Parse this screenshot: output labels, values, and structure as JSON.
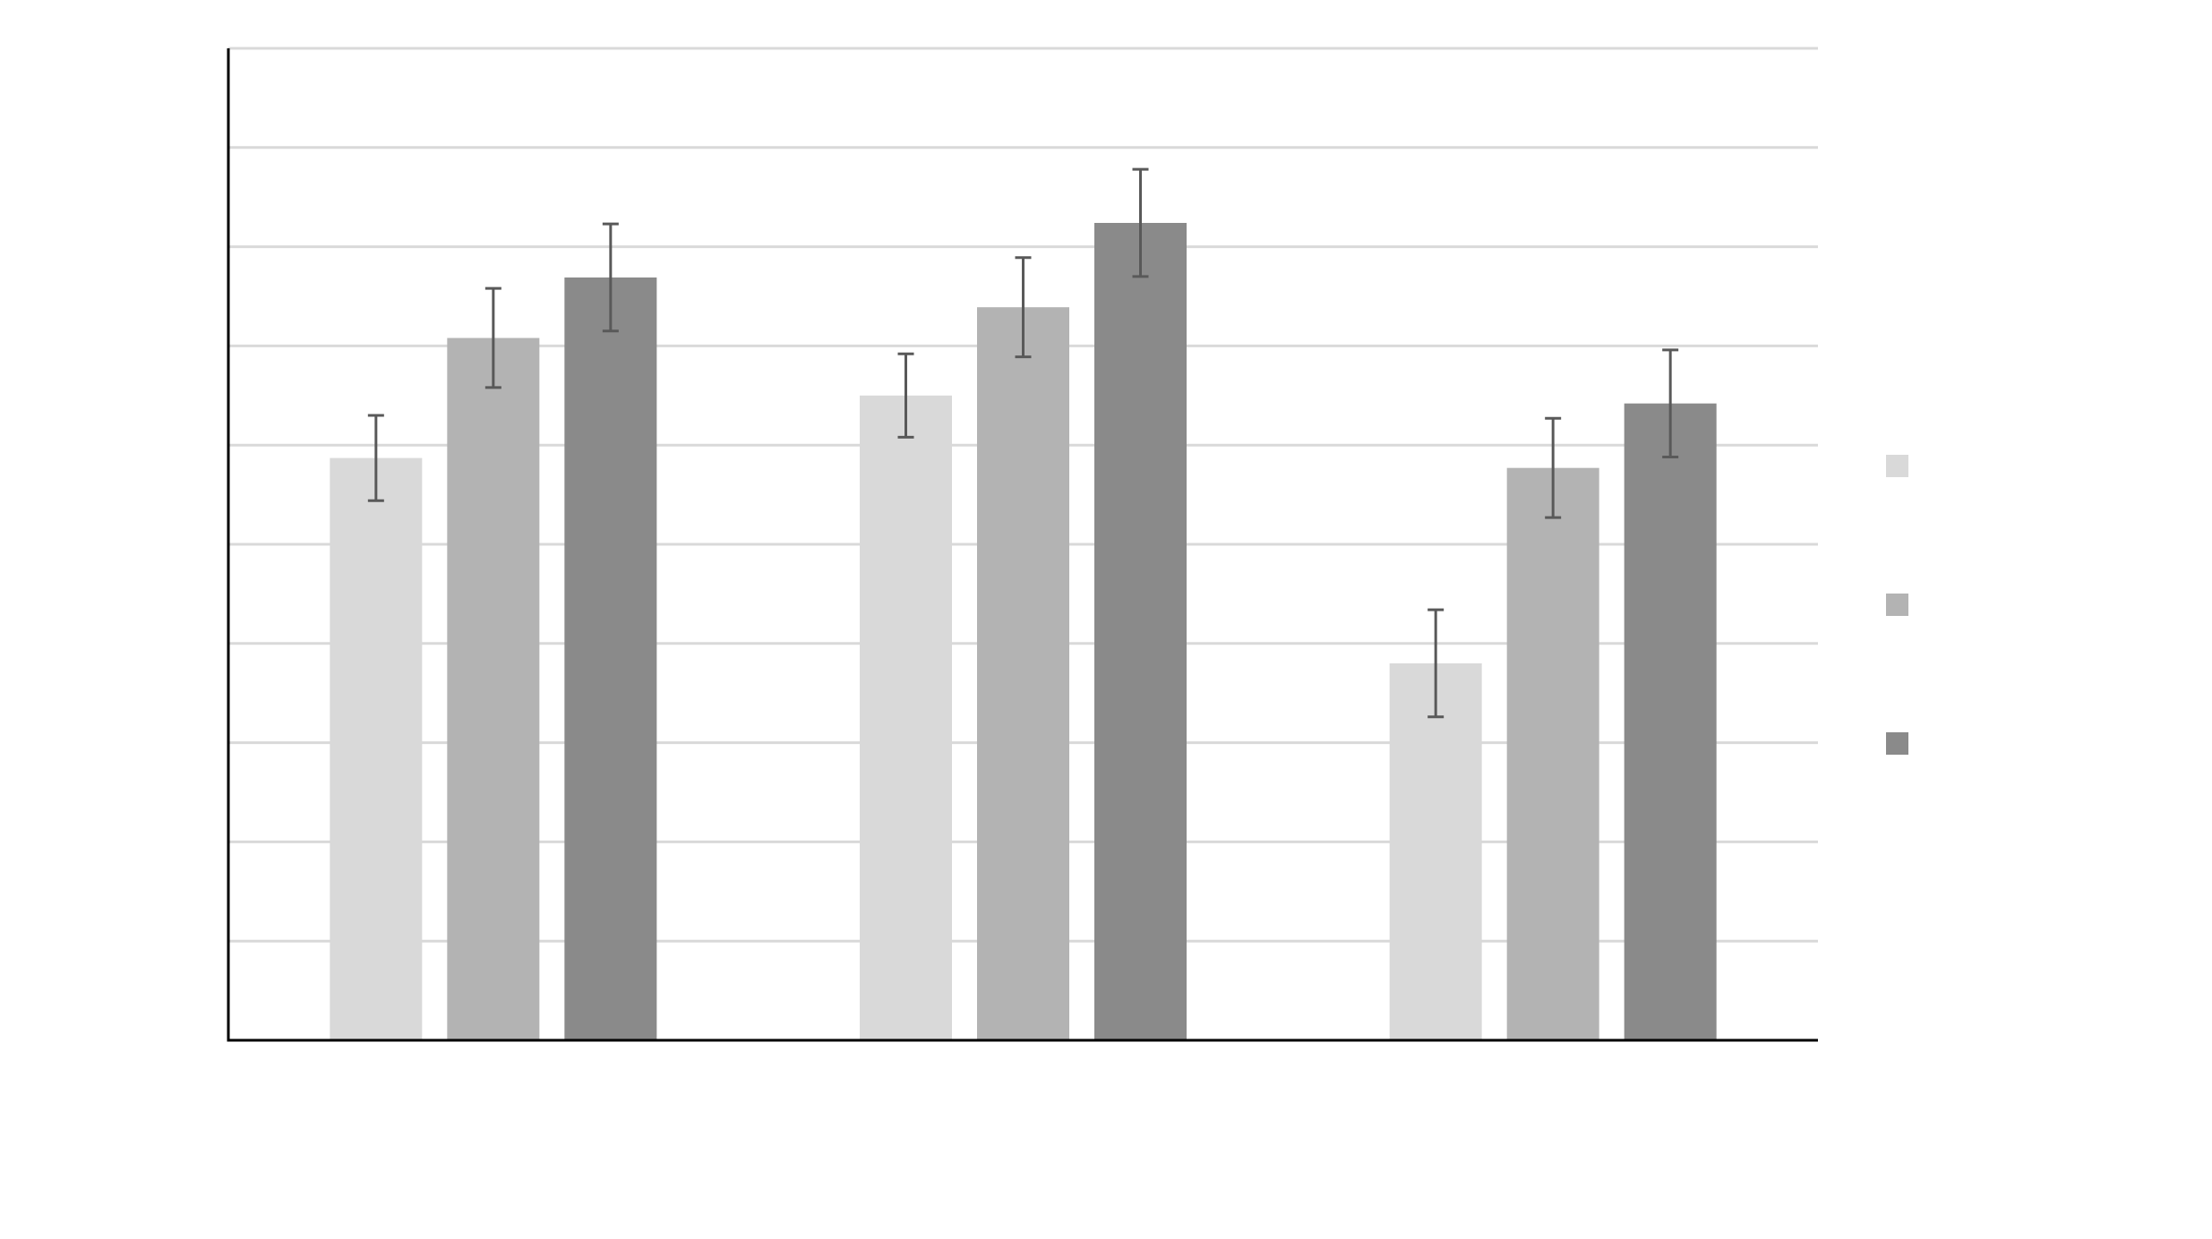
{
  "chart_data": {
    "type": "bar",
    "categories": [
      "",
      "",
      ""
    ],
    "series": [
      {
        "color": "#d9d9d9",
        "values": [
          58.7,
          65.0,
          38.0
        ],
        "errors": [
          4.3,
          4.2,
          5.4
        ]
      },
      {
        "color": "#b3b3b3",
        "values": [
          70.8,
          73.9,
          57.7
        ],
        "errors": [
          5.0,
          5.0,
          5.0
        ]
      },
      {
        "color": "#8a8a8a",
        "values": [
          76.9,
          82.4,
          64.2
        ],
        "errors": [
          5.4,
          5.4,
          5.4
        ]
      }
    ],
    "ylim": [
      0,
      100
    ],
    "gridline_step": 10,
    "grid": true,
    "legend": "right",
    "title": "",
    "xlabel": "",
    "ylabel": "",
    "colors": {
      "gridline": "#d9d9d9",
      "axis": "#000000",
      "error_bar": "#595959"
    }
  }
}
